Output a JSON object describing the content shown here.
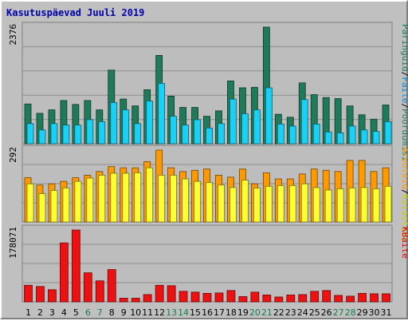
{
  "title": "Kasutuspäevad Juuli 2019",
  "colors": {
    "background": "#c0c0c0",
    "panel": "#bdbdbd",
    "title": "#0000aa",
    "weekday_label": "#000000",
    "weekend_label": "#1a7a4a",
    "pages": "#1f7a5a",
    "files": "#1ad1f5",
    "visits": "#ffff33",
    "hits": "#ff9900",
    "kbytes": "#ee1111",
    "kbytes_label": "#dd0000",
    "visits_label": "#cccc00",
    "files_label": "#0088cc"
  },
  "chart_data": [
    {
      "type": "bar",
      "name": "top",
      "categories": [
        "1",
        "2",
        "3",
        "4",
        "5",
        "6",
        "7",
        "8",
        "9",
        "10",
        "11",
        "12",
        "13",
        "14",
        "15",
        "16",
        "17",
        "18",
        "19",
        "20",
        "21",
        "22",
        "23",
        "24",
        "25",
        "26",
        "27",
        "28",
        "29",
        "30",
        "31"
      ],
      "weekend_days": [
        "6",
        "7",
        "13",
        "14",
        "20",
        "21",
        "27",
        "28"
      ],
      "ymax_label": "2376",
      "ylim": [
        0,
        2376
      ],
      "legend": [
        "Päringuid",
        "/",
        "Faile",
        "/",
        "Pöördumisi"
      ],
      "series": [
        {
          "name": "Pöördumisi",
          "color_key": "pages",
          "values": [
            810,
            620,
            690,
            880,
            800,
            880,
            690,
            1500,
            910,
            770,
            1100,
            1800,
            970,
            740,
            740,
            560,
            670,
            1280,
            1140,
            1150,
            2376,
            600,
            540,
            1240,
            1000,
            940,
            920,
            770,
            590,
            500,
            790
          ]
        },
        {
          "name": "Faile",
          "color_key": "files",
          "values": [
            410,
            280,
            410,
            380,
            380,
            490,
            450,
            840,
            690,
            410,
            870,
            1230,
            560,
            380,
            490,
            320,
            410,
            910,
            610,
            690,
            1140,
            400,
            360,
            900,
            400,
            240,
            220,
            360,
            280,
            250,
            450
          ]
        }
      ]
    },
    {
      "type": "bar",
      "name": "middle",
      "categories": [
        "1",
        "2",
        "3",
        "4",
        "5",
        "6",
        "7",
        "8",
        "9",
        "10",
        "11",
        "12",
        "13",
        "14",
        "15",
        "16",
        "17",
        "18",
        "19",
        "20",
        "21",
        "22",
        "23",
        "24",
        "25",
        "26",
        "27",
        "28",
        "29",
        "30",
        "31"
      ],
      "ymax_label": "292",
      "ylim": [
        0,
        292
      ],
      "legend": [
        "Arvuteid",
        "/",
        "Külastusi"
      ],
      "series": [
        {
          "name": "Arvuteid",
          "color_key": "hits",
          "values": [
            180,
            150,
            155,
            165,
            180,
            190,
            205,
            225,
            220,
            220,
            245,
            292,
            220,
            205,
            210,
            215,
            190,
            182,
            215,
            155,
            200,
            175,
            175,
            195,
            215,
            210,
            205,
            250,
            250,
            205,
            220
          ]
        },
        {
          "name": "Külastusi",
          "color_key": "visits",
          "values": [
            155,
            115,
            128,
            138,
            165,
            178,
            190,
            198,
            198,
            200,
            220,
            190,
            190,
            175,
            165,
            160,
            150,
            140,
            170,
            138,
            145,
            148,
            148,
            155,
            140,
            130,
            135,
            138,
            140,
            135,
            145
          ]
        }
      ]
    },
    {
      "type": "bar",
      "name": "bottom",
      "categories": [
        "1",
        "2",
        "3",
        "4",
        "5",
        "6",
        "7",
        "8",
        "9",
        "10",
        "11",
        "12",
        "13",
        "14",
        "15",
        "16",
        "17",
        "18",
        "19",
        "20",
        "21",
        "22",
        "23",
        "24",
        "25",
        "26",
        "27",
        "28",
        "29",
        "30",
        "31"
      ],
      "ymax_label": "178071",
      "ylim": [
        0,
        178071
      ],
      "legend": [
        "KBaite"
      ],
      "series": [
        {
          "name": "KBaite",
          "color_key": "kbytes",
          "values": [
            41000,
            38000,
            30000,
            146000,
            178071,
            72000,
            52000,
            80000,
            9000,
            9000,
            18000,
            41000,
            40000,
            26000,
            24000,
            21000,
            22000,
            28000,
            13000,
            24000,
            17000,
            12000,
            17000,
            18000,
            26000,
            28000,
            16000,
            14000,
            21000,
            20000,
            20000
          ]
        }
      ]
    }
  ]
}
